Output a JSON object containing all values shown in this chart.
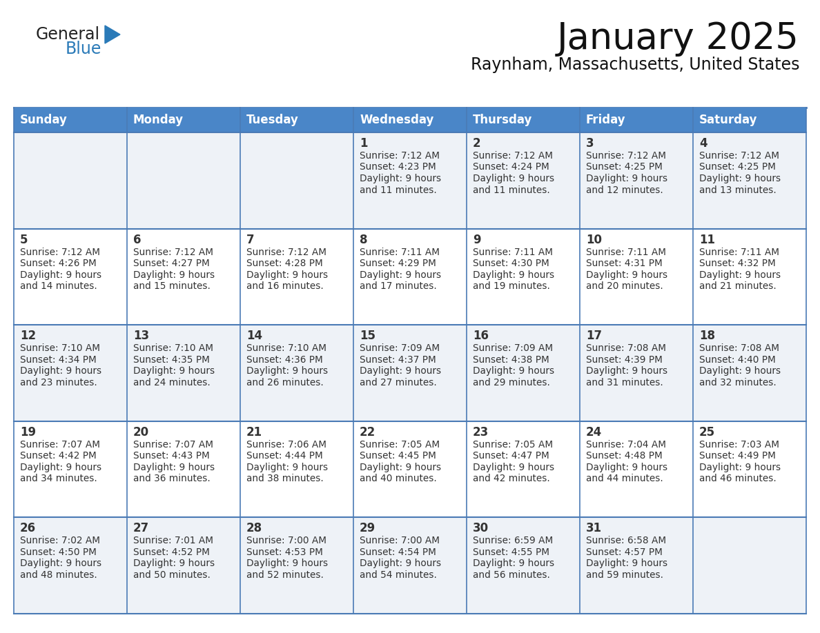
{
  "title": "January 2025",
  "subtitle": "Raynham, Massachusetts, United States",
  "header_color": "#4a86c8",
  "header_text_color": "#ffffff",
  "cell_bg_row0": "#eef2f7",
  "cell_bg_row1": "#ffffff",
  "cell_bg_row2": "#eef2f7",
  "cell_bg_row3": "#ffffff",
  "cell_bg_row4": "#eef2f7",
  "border_color": "#4a7ab5",
  "text_color": "#333333",
  "day_number_color": "#333333",
  "days_of_week": [
    "Sunday",
    "Monday",
    "Tuesday",
    "Wednesday",
    "Thursday",
    "Friday",
    "Saturday"
  ],
  "logo_color1": "#222222",
  "logo_color2": "#2a7ab8",
  "calendar_data": [
    [
      null,
      null,
      null,
      {
        "day": 1,
        "sunrise": "7:12 AM",
        "sunset": "4:23 PM",
        "daylight_h": "9 hours",
        "daylight_m": "and 11 minutes."
      },
      {
        "day": 2,
        "sunrise": "7:12 AM",
        "sunset": "4:24 PM",
        "daylight_h": "9 hours",
        "daylight_m": "and 11 minutes."
      },
      {
        "day": 3,
        "sunrise": "7:12 AM",
        "sunset": "4:25 PM",
        "daylight_h": "9 hours",
        "daylight_m": "and 12 minutes."
      },
      {
        "day": 4,
        "sunrise": "7:12 AM",
        "sunset": "4:25 PM",
        "daylight_h": "9 hours",
        "daylight_m": "and 13 minutes."
      }
    ],
    [
      {
        "day": 5,
        "sunrise": "7:12 AM",
        "sunset": "4:26 PM",
        "daylight_h": "9 hours",
        "daylight_m": "and 14 minutes."
      },
      {
        "day": 6,
        "sunrise": "7:12 AM",
        "sunset": "4:27 PM",
        "daylight_h": "9 hours",
        "daylight_m": "and 15 minutes."
      },
      {
        "day": 7,
        "sunrise": "7:12 AM",
        "sunset": "4:28 PM",
        "daylight_h": "9 hours",
        "daylight_m": "and 16 minutes."
      },
      {
        "day": 8,
        "sunrise": "7:11 AM",
        "sunset": "4:29 PM",
        "daylight_h": "9 hours",
        "daylight_m": "and 17 minutes."
      },
      {
        "day": 9,
        "sunrise": "7:11 AM",
        "sunset": "4:30 PM",
        "daylight_h": "9 hours",
        "daylight_m": "and 19 minutes."
      },
      {
        "day": 10,
        "sunrise": "7:11 AM",
        "sunset": "4:31 PM",
        "daylight_h": "9 hours",
        "daylight_m": "and 20 minutes."
      },
      {
        "day": 11,
        "sunrise": "7:11 AM",
        "sunset": "4:32 PM",
        "daylight_h": "9 hours",
        "daylight_m": "and 21 minutes."
      }
    ],
    [
      {
        "day": 12,
        "sunrise": "7:10 AM",
        "sunset": "4:34 PM",
        "daylight_h": "9 hours",
        "daylight_m": "and 23 minutes."
      },
      {
        "day": 13,
        "sunrise": "7:10 AM",
        "sunset": "4:35 PM",
        "daylight_h": "9 hours",
        "daylight_m": "and 24 minutes."
      },
      {
        "day": 14,
        "sunrise": "7:10 AM",
        "sunset": "4:36 PM",
        "daylight_h": "9 hours",
        "daylight_m": "and 26 minutes."
      },
      {
        "day": 15,
        "sunrise": "7:09 AM",
        "sunset": "4:37 PM",
        "daylight_h": "9 hours",
        "daylight_m": "and 27 minutes."
      },
      {
        "day": 16,
        "sunrise": "7:09 AM",
        "sunset": "4:38 PM",
        "daylight_h": "9 hours",
        "daylight_m": "and 29 minutes."
      },
      {
        "day": 17,
        "sunrise": "7:08 AM",
        "sunset": "4:39 PM",
        "daylight_h": "9 hours",
        "daylight_m": "and 31 minutes."
      },
      {
        "day": 18,
        "sunrise": "7:08 AM",
        "sunset": "4:40 PM",
        "daylight_h": "9 hours",
        "daylight_m": "and 32 minutes."
      }
    ],
    [
      {
        "day": 19,
        "sunrise": "7:07 AM",
        "sunset": "4:42 PM",
        "daylight_h": "9 hours",
        "daylight_m": "and 34 minutes."
      },
      {
        "day": 20,
        "sunrise": "7:07 AM",
        "sunset": "4:43 PM",
        "daylight_h": "9 hours",
        "daylight_m": "and 36 minutes."
      },
      {
        "day": 21,
        "sunrise": "7:06 AM",
        "sunset": "4:44 PM",
        "daylight_h": "9 hours",
        "daylight_m": "and 38 minutes."
      },
      {
        "day": 22,
        "sunrise": "7:05 AM",
        "sunset": "4:45 PM",
        "daylight_h": "9 hours",
        "daylight_m": "and 40 minutes."
      },
      {
        "day": 23,
        "sunrise": "7:05 AM",
        "sunset": "4:47 PM",
        "daylight_h": "9 hours",
        "daylight_m": "and 42 minutes."
      },
      {
        "day": 24,
        "sunrise": "7:04 AM",
        "sunset": "4:48 PM",
        "daylight_h": "9 hours",
        "daylight_m": "and 44 minutes."
      },
      {
        "day": 25,
        "sunrise": "7:03 AM",
        "sunset": "4:49 PM",
        "daylight_h": "9 hours",
        "daylight_m": "and 46 minutes."
      }
    ],
    [
      {
        "day": 26,
        "sunrise": "7:02 AM",
        "sunset": "4:50 PM",
        "daylight_h": "9 hours",
        "daylight_m": "and 48 minutes."
      },
      {
        "day": 27,
        "sunrise": "7:01 AM",
        "sunset": "4:52 PM",
        "daylight_h": "9 hours",
        "daylight_m": "and 50 minutes."
      },
      {
        "day": 28,
        "sunrise": "7:00 AM",
        "sunset": "4:53 PM",
        "daylight_h": "9 hours",
        "daylight_m": "and 52 minutes."
      },
      {
        "day": 29,
        "sunrise": "7:00 AM",
        "sunset": "4:54 PM",
        "daylight_h": "9 hours",
        "daylight_m": "and 54 minutes."
      },
      {
        "day": 30,
        "sunrise": "6:59 AM",
        "sunset": "4:55 PM",
        "daylight_h": "9 hours",
        "daylight_m": "and 56 minutes."
      },
      {
        "day": 31,
        "sunrise": "6:58 AM",
        "sunset": "4:57 PM",
        "daylight_h": "9 hours",
        "daylight_m": "and 59 minutes."
      },
      null
    ]
  ],
  "row_bg_colors": [
    "#eef2f7",
    "#ffffff",
    "#eef2f7",
    "#ffffff",
    "#eef2f7"
  ]
}
